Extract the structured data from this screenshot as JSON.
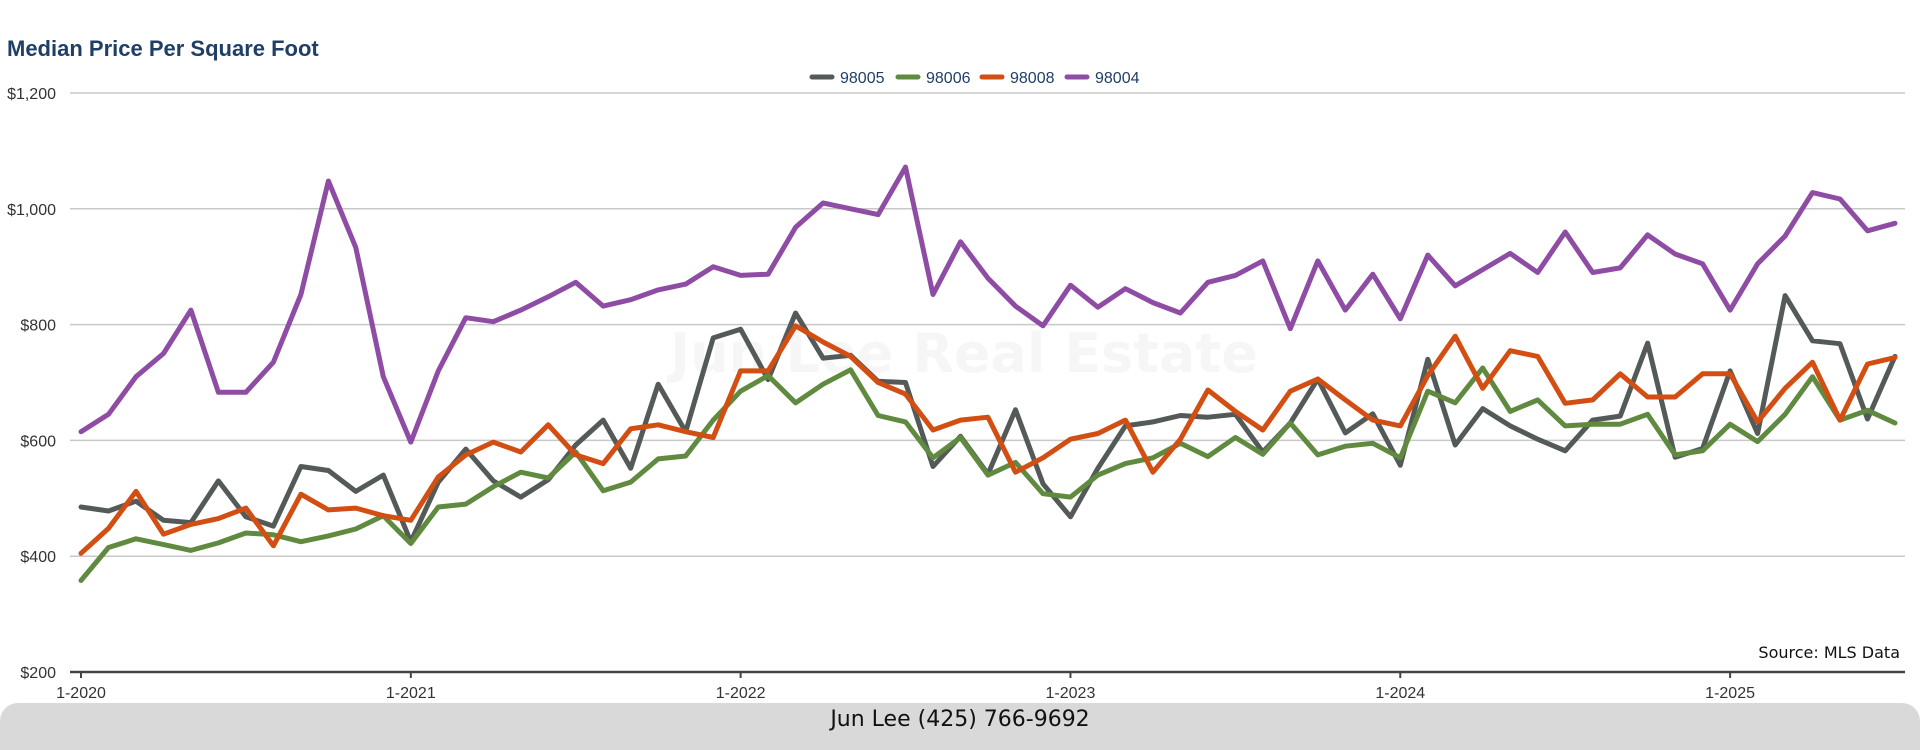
{
  "header": {
    "title": "Median Price Per Square Foot"
  },
  "source_note": "Source: MLS Data",
  "footer": {
    "contact": "Jun Lee (425) 766-9692"
  },
  "watermark": "Jun Lee Real Estate",
  "chart_data": {
    "type": "line",
    "title": "Median Price Per Square Foot",
    "xlabel": "",
    "ylabel": "",
    "ylim": [
      200,
      1200
    ],
    "y_ticks": [
      200,
      400,
      600,
      800,
      1000,
      1200
    ],
    "y_tick_labels": [
      "$200",
      "$400",
      "$600",
      "$800",
      "$1,000",
      "$1,200"
    ],
    "x_range": [
      "2020-01",
      "2025-07"
    ],
    "x_ticks": [
      "2020-01",
      "2021-01",
      "2022-01",
      "2023-01",
      "2024-01",
      "2025-01"
    ],
    "x_tick_labels": [
      "1-2020",
      "1-2021",
      "1-2022",
      "1-2023",
      "1-2024",
      "1-2025"
    ],
    "grid": "horizontal",
    "legend_position": "top-center",
    "x": [
      "2020-01",
      "2020-02",
      "2020-03",
      "2020-04",
      "2020-05",
      "2020-06",
      "2020-07",
      "2020-08",
      "2020-09",
      "2020-10",
      "2020-11",
      "2020-12",
      "2021-01",
      "2021-02",
      "2021-03",
      "2021-04",
      "2021-05",
      "2021-06",
      "2021-07",
      "2021-08",
      "2021-09",
      "2021-10",
      "2021-11",
      "2021-12",
      "2022-01",
      "2022-02",
      "2022-03",
      "2022-04",
      "2022-05",
      "2022-06",
      "2022-07",
      "2022-08",
      "2022-09",
      "2022-10",
      "2022-11",
      "2022-12",
      "2023-01",
      "2023-02",
      "2023-03",
      "2023-04",
      "2023-05",
      "2023-06",
      "2023-07",
      "2023-08",
      "2023-09",
      "2023-10",
      "2023-11",
      "2023-12",
      "2024-01",
      "2024-02",
      "2024-03",
      "2024-04",
      "2024-05",
      "2024-06",
      "2024-07",
      "2024-08",
      "2024-09",
      "2024-10",
      "2024-11",
      "2024-12",
      "2025-01",
      "2025-02",
      "2025-03",
      "2025-04",
      "2025-05",
      "2025-06",
      "2025-07"
    ],
    "series": [
      {
        "name": "98005",
        "color": "#545a58",
        "values": [
          485,
          478,
          495,
          462,
          458,
          530,
          468,
          452,
          555,
          548,
          512,
          540,
          425,
          528,
          585,
          530,
          502,
          532,
          592,
          635,
          552,
          697,
          615,
          777,
          792,
          705,
          820,
          742,
          747,
          702,
          700,
          555,
          607,
          542,
          653,
          525,
          468,
          552,
          625,
          632,
          643,
          640,
          645,
          580,
          630,
          706,
          613,
          646,
          557,
          740,
          592,
          655,
          625,
          602,
          582,
          635,
          642,
          768,
          571,
          586,
          720,
          612,
          850,
          772,
          767,
          637,
          745
        ]
      },
      {
        "name": "98006",
        "color": "#5f8a3f",
        "values": [
          358,
          415,
          430,
          420,
          410,
          423,
          440,
          437,
          425,
          435,
          447,
          470,
          422,
          485,
          490,
          520,
          545,
          535,
          580,
          513,
          528,
          568,
          573,
          635,
          685,
          712,
          665,
          697,
          722,
          643,
          632,
          570,
          605,
          540,
          562,
          508,
          502,
          540,
          560,
          570,
          595,
          572,
          605,
          576,
          630,
          575,
          590,
          595,
          570,
          685,
          665,
          725,
          650,
          670,
          625,
          628,
          628,
          645,
          575,
          582,
          628,
          598,
          645,
          710,
          635,
          652,
          630
        ]
      },
      {
        "name": "98008",
        "color": "#d24e12",
        "values": [
          405,
          448,
          512,
          438,
          455,
          465,
          483,
          418,
          507,
          480,
          483,
          470,
          462,
          537,
          575,
          597,
          580,
          627,
          575,
          560,
          620,
          627,
          615,
          605,
          720,
          720,
          798,
          770,
          745,
          700,
          680,
          618,
          635,
          640,
          545,
          570,
          602,
          612,
          635,
          545,
          602,
          687,
          650,
          618,
          685,
          706,
          670,
          635,
          625,
          712,
          780,
          690,
          755,
          745,
          664,
          670,
          715,
          675,
          675,
          715,
          715,
          632,
          690,
          735,
          635,
          732,
          743
        ]
      },
      {
        "name": "98004",
        "color": "#8e4ca4",
        "values": [
          615,
          645,
          710,
          750,
          825,
          683,
          683,
          735,
          852,
          1048,
          933,
          710,
          597,
          720,
          812,
          805,
          825,
          848,
          873,
          832,
          843,
          860,
          870,
          900,
          885,
          887,
          968,
          1010,
          1000,
          990,
          1072,
          852,
          943,
          880,
          832,
          798,
          868,
          830,
          862,
          838,
          820,
          873,
          885,
          910,
          793,
          910,
          825,
          887,
          810,
          920,
          867,
          895,
          923,
          890,
          960,
          890,
          898,
          955,
          922,
          905,
          825,
          905,
          953,
          1028,
          1017,
          962,
          975
        ]
      }
    ]
  }
}
